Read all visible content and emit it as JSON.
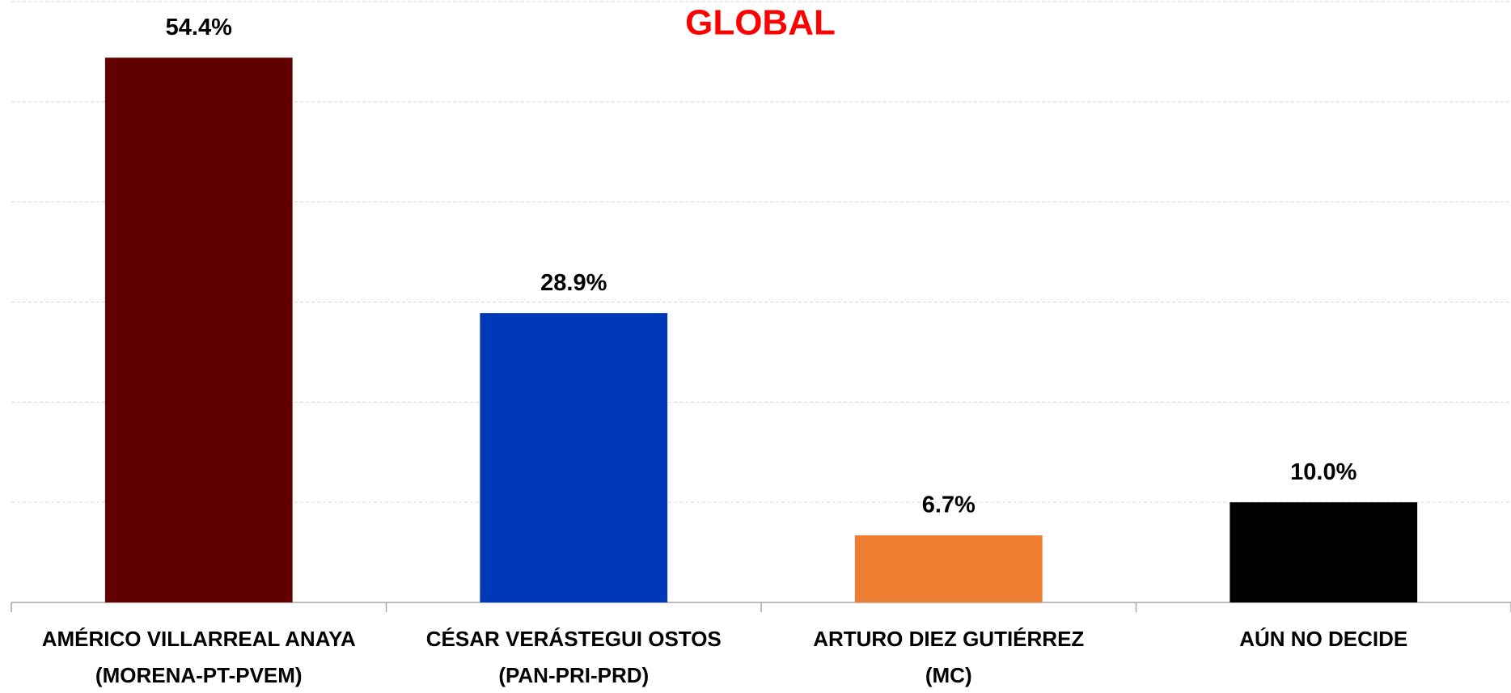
{
  "chart_data": {
    "type": "bar",
    "title": "GLOBAL",
    "categories": [
      [
        "AMÉRICO VILLARREAL ANAYA",
        "(MORENA-PT-PVEM)"
      ],
      [
        "CÉSAR VERÁSTEGUI OSTOS",
        "(PAN-PRI-PRD)"
      ],
      [
        "ARTURO DIEZ GUTIÉRREZ",
        "(MC)"
      ],
      [
        "AÚN NO DECIDE"
      ]
    ],
    "values": [
      54.4,
      28.9,
      6.7,
      10.0
    ],
    "value_labels": [
      "54.4%",
      "28.9%",
      "6.7%",
      "10.0%"
    ],
    "colors": [
      "#600000",
      "#0039b7",
      "#ed7d31",
      "#000000"
    ],
    "ylim": [
      0,
      60
    ],
    "yticks": [
      0,
      10,
      20,
      30,
      40,
      50,
      60
    ],
    "grid": true
  }
}
